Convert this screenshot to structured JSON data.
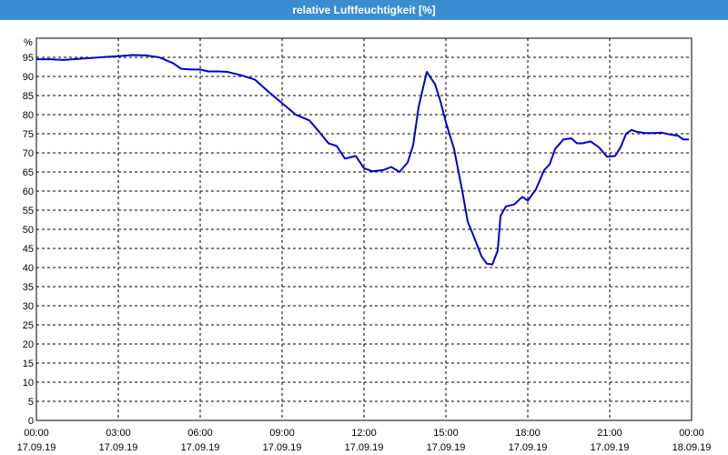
{
  "window": {
    "title": "relative Luftfeuchtigkeit [%]"
  },
  "colors": {
    "title_bar": "#3a8dd0",
    "line": "#0000cc",
    "grid": "#000000"
  },
  "chart_data": {
    "type": "line",
    "title": "relative Luftfeuchtigkeit [%]",
    "ylabel": "%",
    "xlabel": "",
    "ylim": [
      0,
      100
    ],
    "xlim": [
      0,
      24
    ],
    "grid": true,
    "y_ticks": [
      0,
      5,
      10,
      15,
      20,
      25,
      30,
      35,
      40,
      45,
      50,
      55,
      60,
      65,
      70,
      75,
      80,
      85,
      90,
      95
    ],
    "x_ticks": [
      {
        "time": "00:00",
        "date": "17.09.19"
      },
      {
        "time": "03:00",
        "date": "17.09.19"
      },
      {
        "time": "06:00",
        "date": "17.09.19"
      },
      {
        "time": "09:00",
        "date": "17.09.19"
      },
      {
        "time": "12:00",
        "date": "17.09.19"
      },
      {
        "time": "15:00",
        "date": "17.09.19"
      },
      {
        "time": "18:00",
        "date": "17.09.19"
      },
      {
        "time": "21:00",
        "date": "17.09.19"
      },
      {
        "time": "00:00",
        "date": "18.09.19"
      }
    ],
    "series": [
      {
        "x": [
          0.0,
          0.5,
          1.0,
          1.5,
          2.0,
          2.5,
          3.0,
          3.5,
          4.0,
          4.5,
          5.0,
          5.3,
          5.7,
          6.0,
          6.3,
          6.7,
          7.0,
          7.5,
          8.0,
          8.5,
          9.0,
          9.5,
          10.0,
          10.3,
          10.7,
          11.0,
          11.3,
          11.7,
          12.0,
          12.3,
          12.7,
          13.0,
          13.3,
          13.6,
          13.8,
          14.0,
          14.3,
          14.6,
          14.8,
          15.0,
          15.3,
          15.6,
          15.8,
          16.0,
          16.3,
          16.5,
          16.7,
          16.9,
          17.0,
          17.2,
          17.5,
          17.8,
          18.0,
          18.3,
          18.6,
          18.8,
          19.0,
          19.3,
          19.6,
          19.8,
          20.0,
          20.3,
          20.6,
          20.9,
          21.2,
          21.4,
          21.6,
          21.8,
          22.0,
          22.3,
          22.6,
          22.9,
          23.2,
          23.5,
          23.7,
          23.9
        ],
        "y": [
          94.5,
          94.5,
          94.3,
          94.6,
          94.8,
          95.1,
          95.3,
          95.6,
          95.5,
          95.0,
          93.5,
          92.0,
          91.8,
          91.8,
          91.3,
          91.3,
          91.2,
          90.3,
          89.2,
          86.0,
          83.0,
          80.0,
          78.5,
          76.0,
          72.5,
          71.8,
          68.5,
          69.2,
          66.0,
          65.2,
          65.5,
          66.3,
          65.0,
          67.5,
          72.0,
          82.0,
          91.2,
          88.0,
          83.5,
          78.0,
          71.0,
          60.0,
          52.0,
          48.5,
          43.0,
          41.0,
          40.8,
          44.5,
          53.5,
          56.0,
          56.5,
          58.5,
          57.5,
          60.5,
          65.5,
          67.0,
          71.0,
          73.5,
          73.8,
          72.5,
          72.5,
          73.0,
          71.5,
          69.0,
          69.2,
          71.5,
          75.0,
          76.0,
          75.5,
          75.2,
          75.2,
          75.3,
          74.8,
          74.5,
          73.5,
          73.5
        ]
      }
    ]
  }
}
